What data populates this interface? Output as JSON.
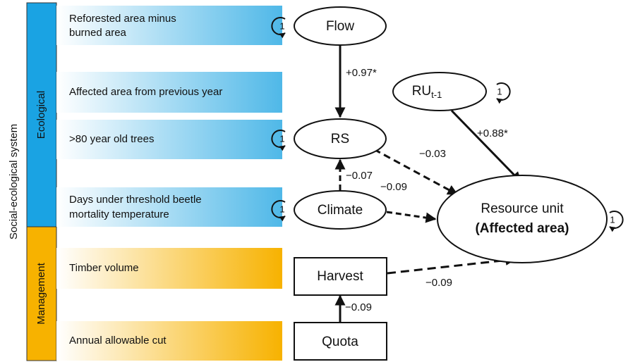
{
  "axis_label": "Social-ecological system",
  "groups": [
    {
      "label": "Ecological"
    },
    {
      "label": "Management"
    }
  ],
  "rows": [
    {
      "lines": [
        "Reforested area minus",
        "burned area"
      ]
    },
    {
      "lines": [
        "Affected area from previous year"
      ]
    },
    {
      "lines": [
        ">80 year old trees"
      ]
    },
    {
      "lines": [
        "Days under threshold beetle",
        "mortality temperature"
      ]
    },
    {
      "lines": [
        "Timber volume"
      ]
    },
    {
      "lines": [
        "Annual allowable cut"
      ]
    }
  ],
  "nodes": [
    {
      "label": "Flow",
      "loop": "1"
    },
    {
      "label": "RU",
      "subscript": "t-1",
      "loop": "1"
    },
    {
      "label": "RS",
      "loop": "1"
    },
    {
      "label": "Climate",
      "loop": "1"
    },
    {
      "lines": [
        "Resource unit",
        "(Affected area)"
      ],
      "loop": "1"
    },
    {
      "label": "Harvest"
    },
    {
      "label": "Quota"
    }
  ],
  "edges": [
    {
      "label": "+0.97*"
    },
    {
      "label": "+0.88*"
    },
    {
      "label": "−0.03"
    },
    {
      "label": "−0.07"
    },
    {
      "label": "−0.09"
    },
    {
      "label": "−0.09"
    },
    {
      "label": "−0.09"
    }
  ]
}
